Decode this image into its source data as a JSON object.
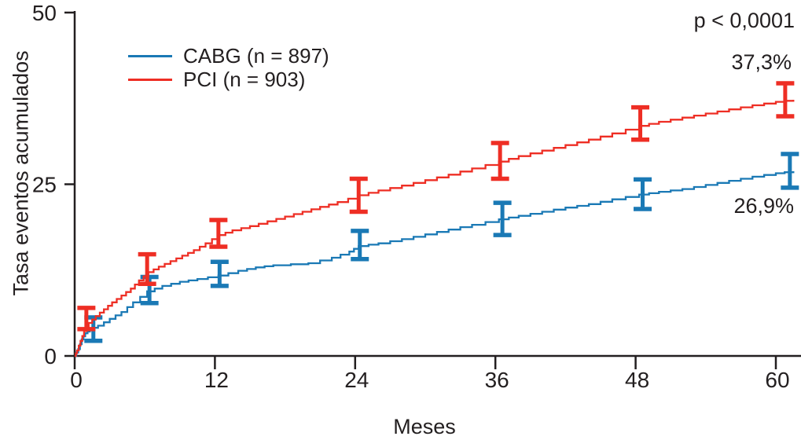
{
  "figure": {
    "background": "#ffffff",
    "text_color": "#231f20"
  },
  "chart_data": {
    "type": "line",
    "subtype": "kaplan-meier-step-curves-with-error-bars",
    "title": "",
    "xlabel": "Meses",
    "ylabel": "Tasa eventos acumulados",
    "p_value": "p < 0,0001",
    "xlim": [
      0,
      62.2
    ],
    "ylim": [
      0,
      50
    ],
    "x_ticks": [
      0,
      12,
      24,
      36,
      48,
      60
    ],
    "y_ticks": [
      0,
      25,
      50
    ],
    "grid": false,
    "legend_position": "upper-left-inside",
    "series": [
      {
        "name": "CABG (n = 897)",
        "color": "#1a79b5",
        "end_label": "26,9%",
        "points": [
          [
            0,
            0
          ],
          [
            0.3,
            1.0
          ],
          [
            0.6,
            2.4
          ],
          [
            0.9,
            3.3
          ],
          [
            1.3,
            3.8
          ],
          [
            2.0,
            4.4
          ],
          [
            3.0,
            5.4
          ],
          [
            4.0,
            6.4
          ],
          [
            5.0,
            7.8
          ],
          [
            6.2,
            9.4
          ],
          [
            7.5,
            10.2
          ],
          [
            9,
            10.8
          ],
          [
            10.5,
            11.2
          ],
          [
            12.3,
            11.7
          ],
          [
            14,
            12.4
          ],
          [
            15.5,
            12.9
          ],
          [
            17,
            13.2
          ],
          [
            20,
            13.5
          ],
          [
            22,
            14.3
          ],
          [
            23.5,
            15.2
          ],
          [
            24.3,
            16.0
          ],
          [
            26,
            16.4
          ],
          [
            28,
            17.0
          ],
          [
            30,
            17.7
          ],
          [
            32,
            18.4
          ],
          [
            34,
            19.1
          ],
          [
            36.3,
            19.9
          ],
          [
            38,
            20.4
          ],
          [
            40,
            21.0
          ],
          [
            42,
            21.6
          ],
          [
            44,
            22.1
          ],
          [
            46,
            22.8
          ],
          [
            48.3,
            23.5
          ],
          [
            50,
            23.9
          ],
          [
            52,
            24.3
          ],
          [
            54,
            24.9
          ],
          [
            56,
            25.5
          ],
          [
            58,
            26.1
          ],
          [
            60,
            26.6
          ],
          [
            61.5,
            26.9
          ]
        ],
        "error_bars": [
          {
            "m": 1.6,
            "lo": 2.2,
            "hi": 5.6
          },
          {
            "m": 6.4,
            "lo": 7.7,
            "hi": 11.5
          },
          {
            "m": 12.4,
            "lo": 10.2,
            "hi": 13.7
          },
          {
            "m": 24.4,
            "lo": 14.1,
            "hi": 18.2
          },
          {
            "m": 36.6,
            "lo": 17.6,
            "hi": 22.3
          },
          {
            "m": 48.6,
            "lo": 21.4,
            "hi": 25.7
          },
          {
            "m": 61.2,
            "lo": 24.5,
            "hi": 29.4
          }
        ]
      },
      {
        "name": "PCI (n = 903)",
        "color": "#ee2e24",
        "end_label": "37,3%",
        "points": [
          [
            0,
            0
          ],
          [
            0.2,
            0.8
          ],
          [
            0.5,
            2.2
          ],
          [
            0.8,
            3.6
          ],
          [
            1.2,
            4.8
          ],
          [
            1.8,
            5.8
          ],
          [
            2.5,
            6.8
          ],
          [
            3.2,
            7.8
          ],
          [
            4.0,
            8.8
          ],
          [
            4.8,
            9.8
          ],
          [
            5.5,
            11.0
          ],
          [
            6.3,
            12.2
          ],
          [
            7.2,
            13.0
          ],
          [
            8.2,
            13.8
          ],
          [
            9.2,
            14.6
          ],
          [
            10.2,
            15.4
          ],
          [
            11.2,
            16.4
          ],
          [
            12.3,
            17.6
          ],
          [
            13.5,
            18.3
          ],
          [
            15,
            18.9
          ],
          [
            16.5,
            19.6
          ],
          [
            18,
            20.3
          ],
          [
            19.5,
            21.0
          ],
          [
            21,
            21.7
          ],
          [
            22.5,
            22.4
          ],
          [
            24.3,
            23.4
          ],
          [
            26,
            24.1
          ],
          [
            28,
            24.8
          ],
          [
            30,
            25.6
          ],
          [
            32,
            26.4
          ],
          [
            34,
            27.3
          ],
          [
            36.3,
            28.3
          ],
          [
            38,
            29.1
          ],
          [
            40,
            29.9
          ],
          [
            42,
            30.7
          ],
          [
            44,
            31.5
          ],
          [
            46,
            32.4
          ],
          [
            48.3,
            33.5
          ],
          [
            50,
            34.1
          ],
          [
            52,
            34.7
          ],
          [
            54,
            35.3
          ],
          [
            56,
            35.9
          ],
          [
            58,
            36.5
          ],
          [
            60,
            37.0
          ],
          [
            61.5,
            37.3
          ]
        ],
        "error_bars": [
          {
            "m": 1.0,
            "lo": 3.9,
            "hi": 7.0
          },
          {
            "m": 6.2,
            "lo": 10.5,
            "hi": 14.8
          },
          {
            "m": 12.3,
            "lo": 15.9,
            "hi": 19.8
          },
          {
            "m": 24.3,
            "lo": 21.0,
            "hi": 25.8
          },
          {
            "m": 36.4,
            "lo": 25.8,
            "hi": 31.0
          },
          {
            "m": 48.4,
            "lo": 31.5,
            "hi": 36.2
          },
          {
            "m": 60.8,
            "lo": 34.9,
            "hi": 39.7
          }
        ]
      }
    ]
  }
}
